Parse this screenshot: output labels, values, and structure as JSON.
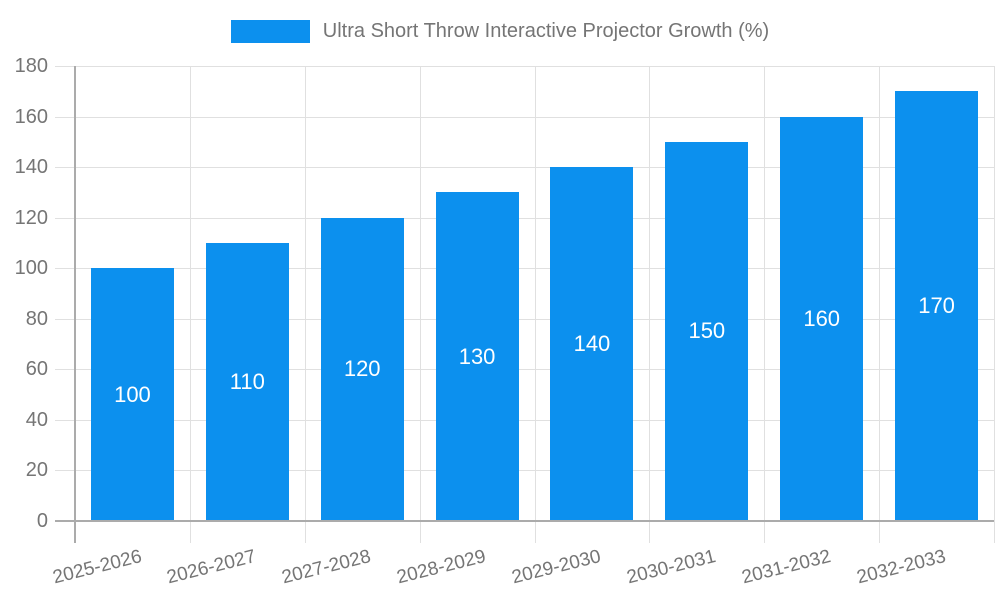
{
  "chart_data": {
    "type": "bar",
    "title": "Ultra Short Throw Interactive Projector Growth (%)",
    "legend": [
      "Ultra Short Throw Interactive Projector Growth (%)"
    ],
    "legend_position": "top-center",
    "categories": [
      "2025-2026",
      "2026-2027",
      "2027-2028",
      "2028-2029",
      "2029-2030",
      "2030-2031",
      "2031-2032",
      "2032-2033"
    ],
    "values": [
      100,
      110,
      120,
      130,
      140,
      150,
      160,
      170
    ],
    "bar_labels": [
      "100",
      "110",
      "120",
      "130",
      "140",
      "150",
      "160",
      "170"
    ],
    "xlabel": "",
    "ylabel": "",
    "ylim": [
      0,
      180
    ],
    "ytick_step": 20,
    "ytick_labels": [
      "0",
      "20",
      "40",
      "60",
      "80",
      "100",
      "120",
      "140",
      "160",
      "180"
    ],
    "grid": true
  },
  "colors": {
    "bar": "#0C90EE",
    "bar_label": "#ffffff",
    "axis_text": "#757575",
    "gridline": "#e0e0e0",
    "axis_line": "#ababab",
    "background": "#ffffff"
  }
}
